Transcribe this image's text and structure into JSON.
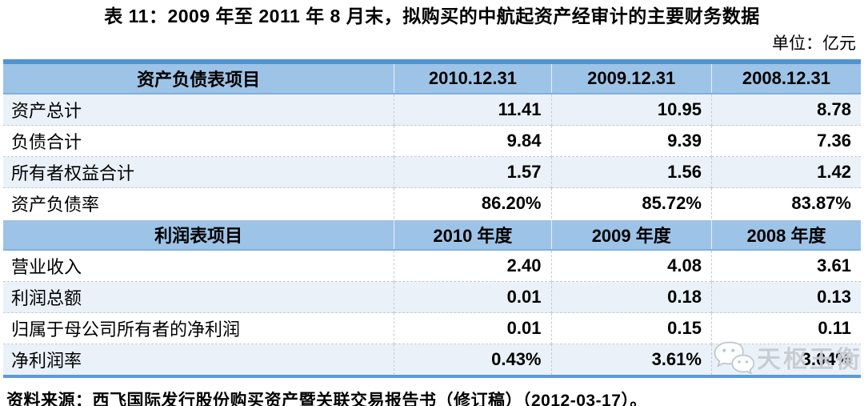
{
  "page": {
    "title": "表 11：2009 年至 2011 年 8 月末，拟购买的中航起资产经审计的主要财务数据",
    "unit_label": "单位：亿元",
    "source_note": "资料来源：西飞国际发行股份购买资产暨关联交易报告书（修订稿）（2012-03-17）。"
  },
  "table": {
    "sections": [
      {
        "header": [
          "资产负债表项目",
          "2010.12.31",
          "2009.12.31",
          "2008.12.31"
        ],
        "rows": [
          [
            "资产总计",
            "11.41",
            "10.95",
            "8.78"
          ],
          [
            "负债合计",
            "9.84",
            "9.39",
            "7.36"
          ],
          [
            "所有者权益合计",
            "1.57",
            "1.56",
            "1.42"
          ],
          [
            "资产负债率",
            "86.20%",
            "85.72%",
            "83.87%"
          ]
        ]
      },
      {
        "header": [
          "利润表项目",
          "2010 年度",
          "2009 年度",
          "2008 年度"
        ],
        "rows": [
          [
            "营业收入",
            "2.40",
            "4.08",
            "3.61"
          ],
          [
            "利润总额",
            "0.01",
            "0.18",
            "0.13"
          ],
          [
            "归属于母公司所有者的净利润",
            "0.01",
            "0.15",
            "0.11"
          ],
          [
            "净利润率",
            "0.43%",
            "3.61%",
            "3.04%"
          ]
        ]
      }
    ]
  },
  "watermark": {
    "icon": "wechat-icon",
    "text": "天枢玉衡"
  },
  "colors": {
    "header_bg": "#9dc3e6",
    "band_bg": "#eaf1f9",
    "table_top_border": "#4e94d0",
    "table_bottom_border": "#5b9bd5",
    "divider": "#c6cbd1",
    "watermark_gray": "#c7ccd3"
  }
}
